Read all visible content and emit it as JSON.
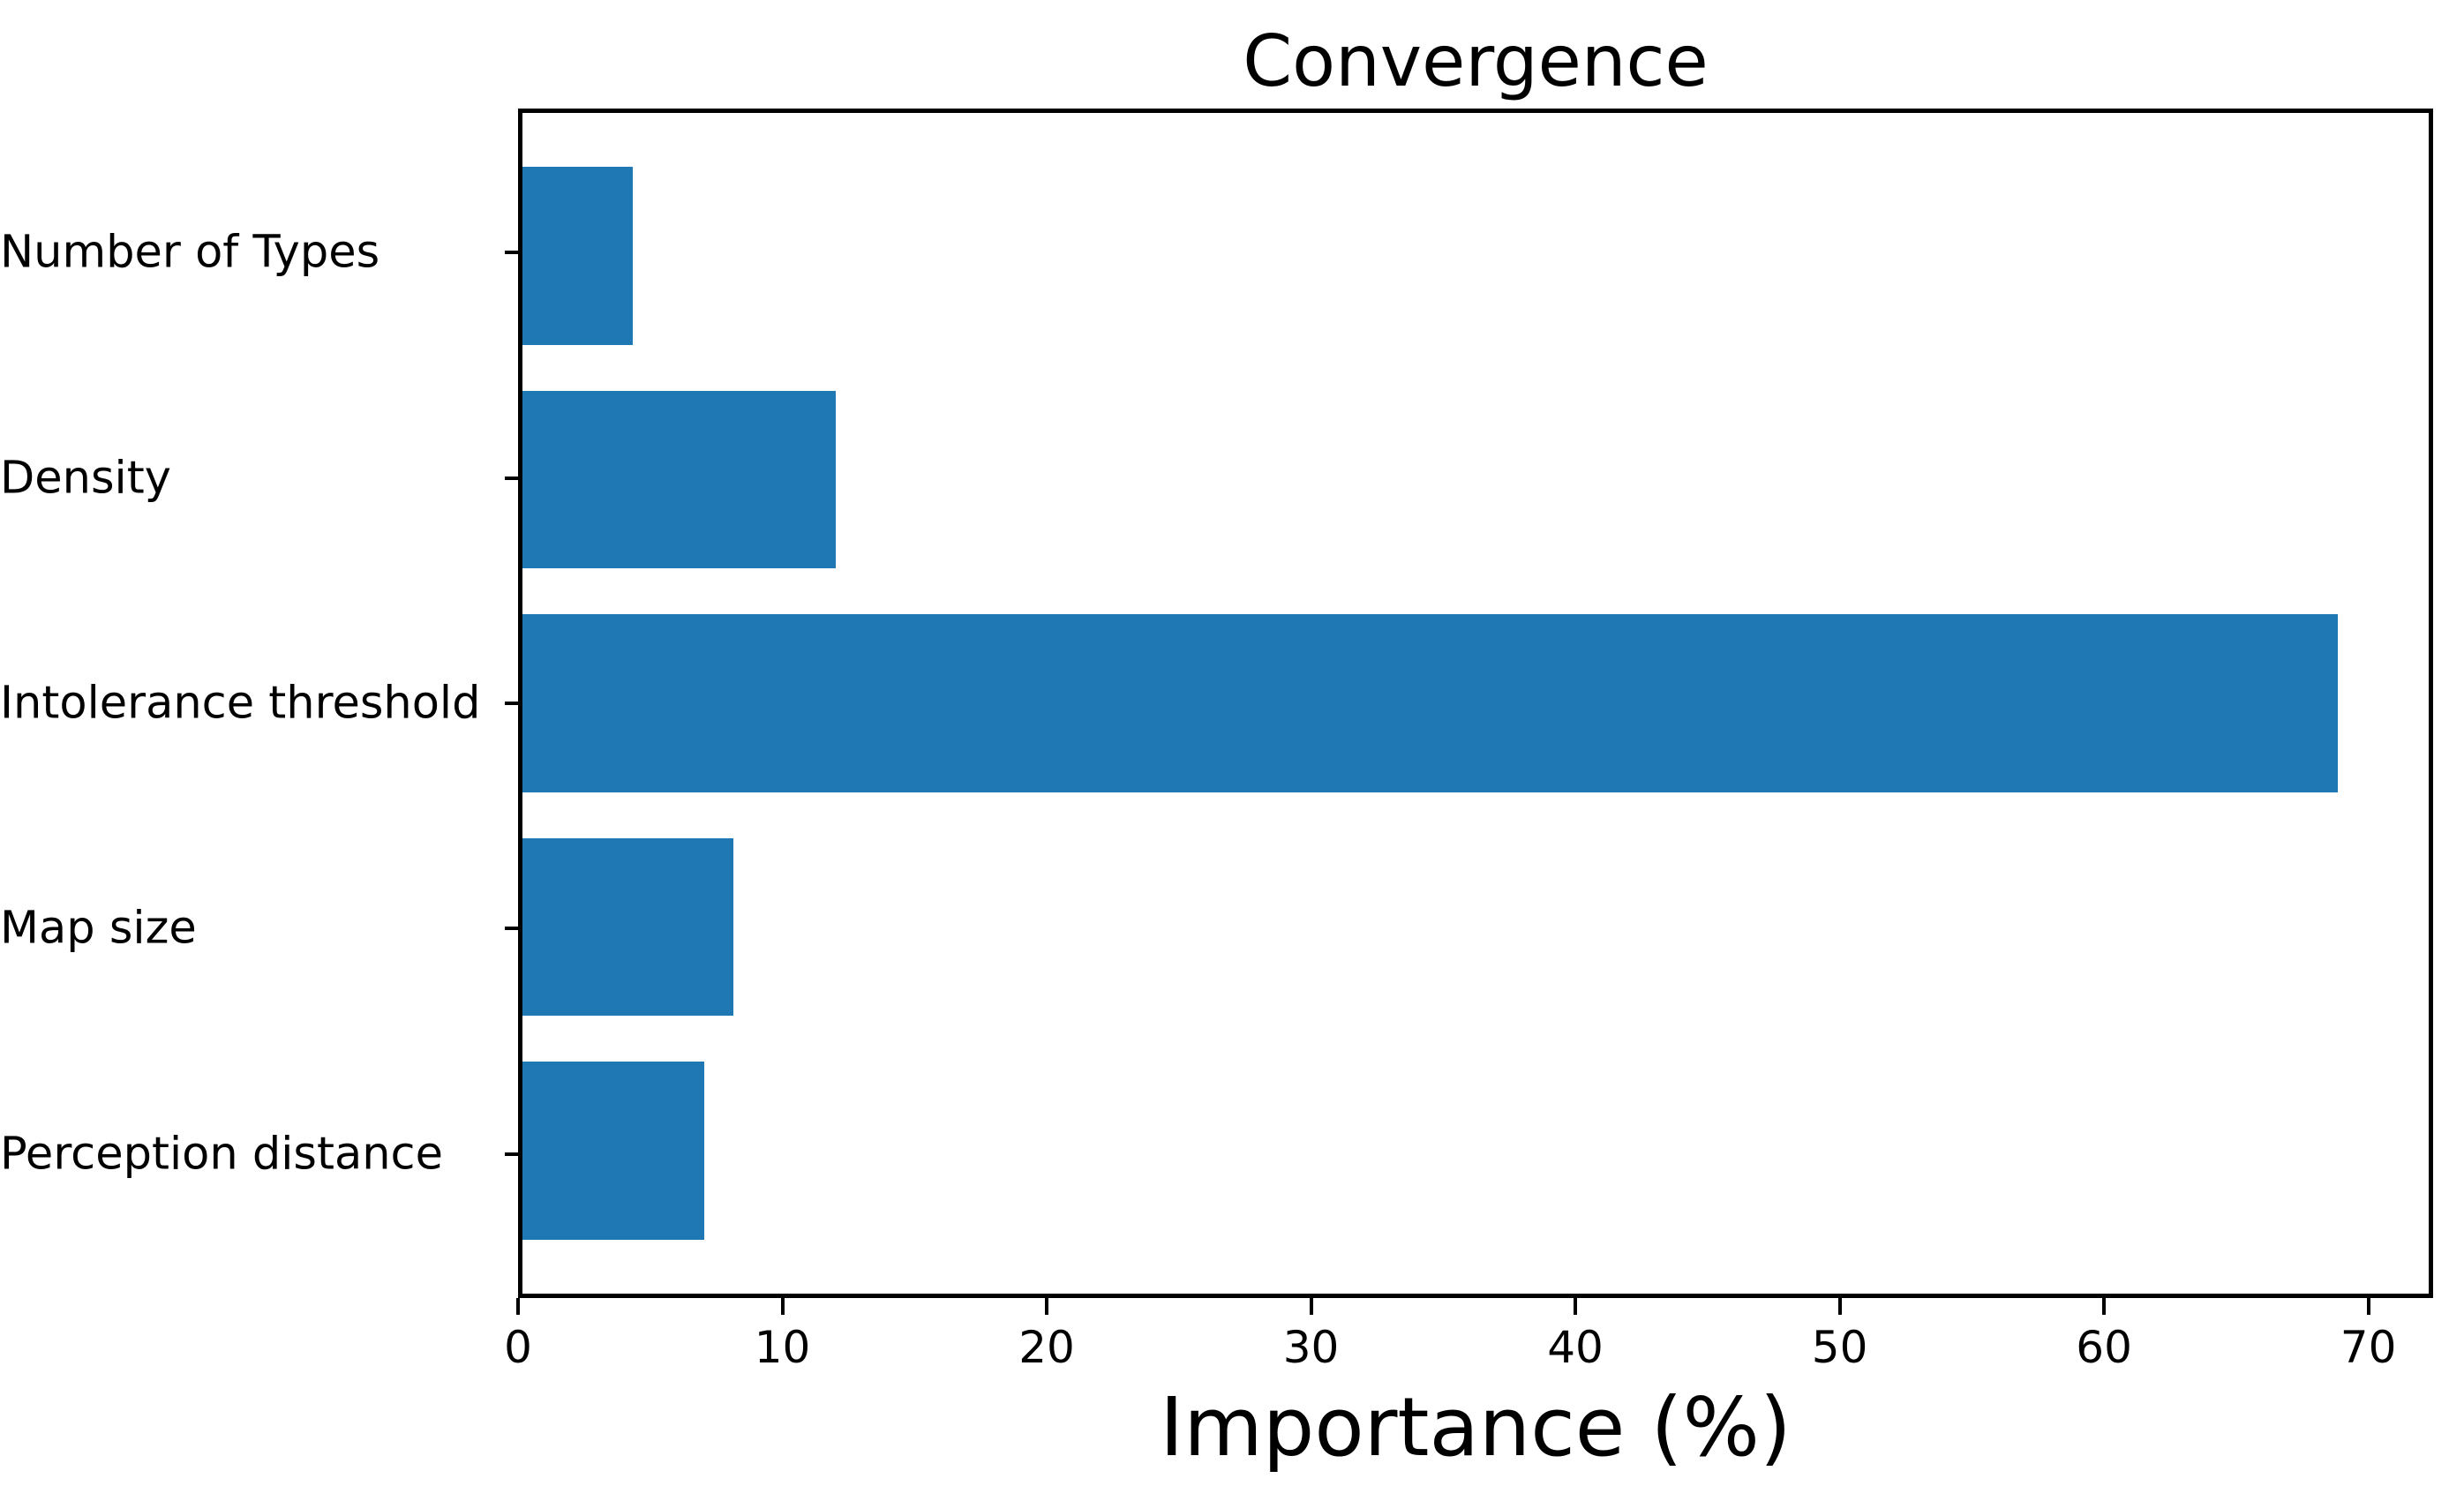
{
  "chart_data": {
    "type": "bar",
    "orientation": "horizontal",
    "title": "Convergence",
    "xlabel": "Importance (%)",
    "ylabel": "",
    "categories": [
      "Number of Types",
      "Density",
      "Intolerance threshold",
      "Map size",
      "Perception distance"
    ],
    "values": [
      4.2,
      11.9,
      69,
      8,
      6.9
    ],
    "xticks": [
      0,
      10,
      20,
      30,
      40,
      50,
      60,
      70
    ],
    "xlim": [
      0,
      72.45
    ],
    "bar_color": "#1f77b4",
    "grid": false,
    "legend": null
  }
}
